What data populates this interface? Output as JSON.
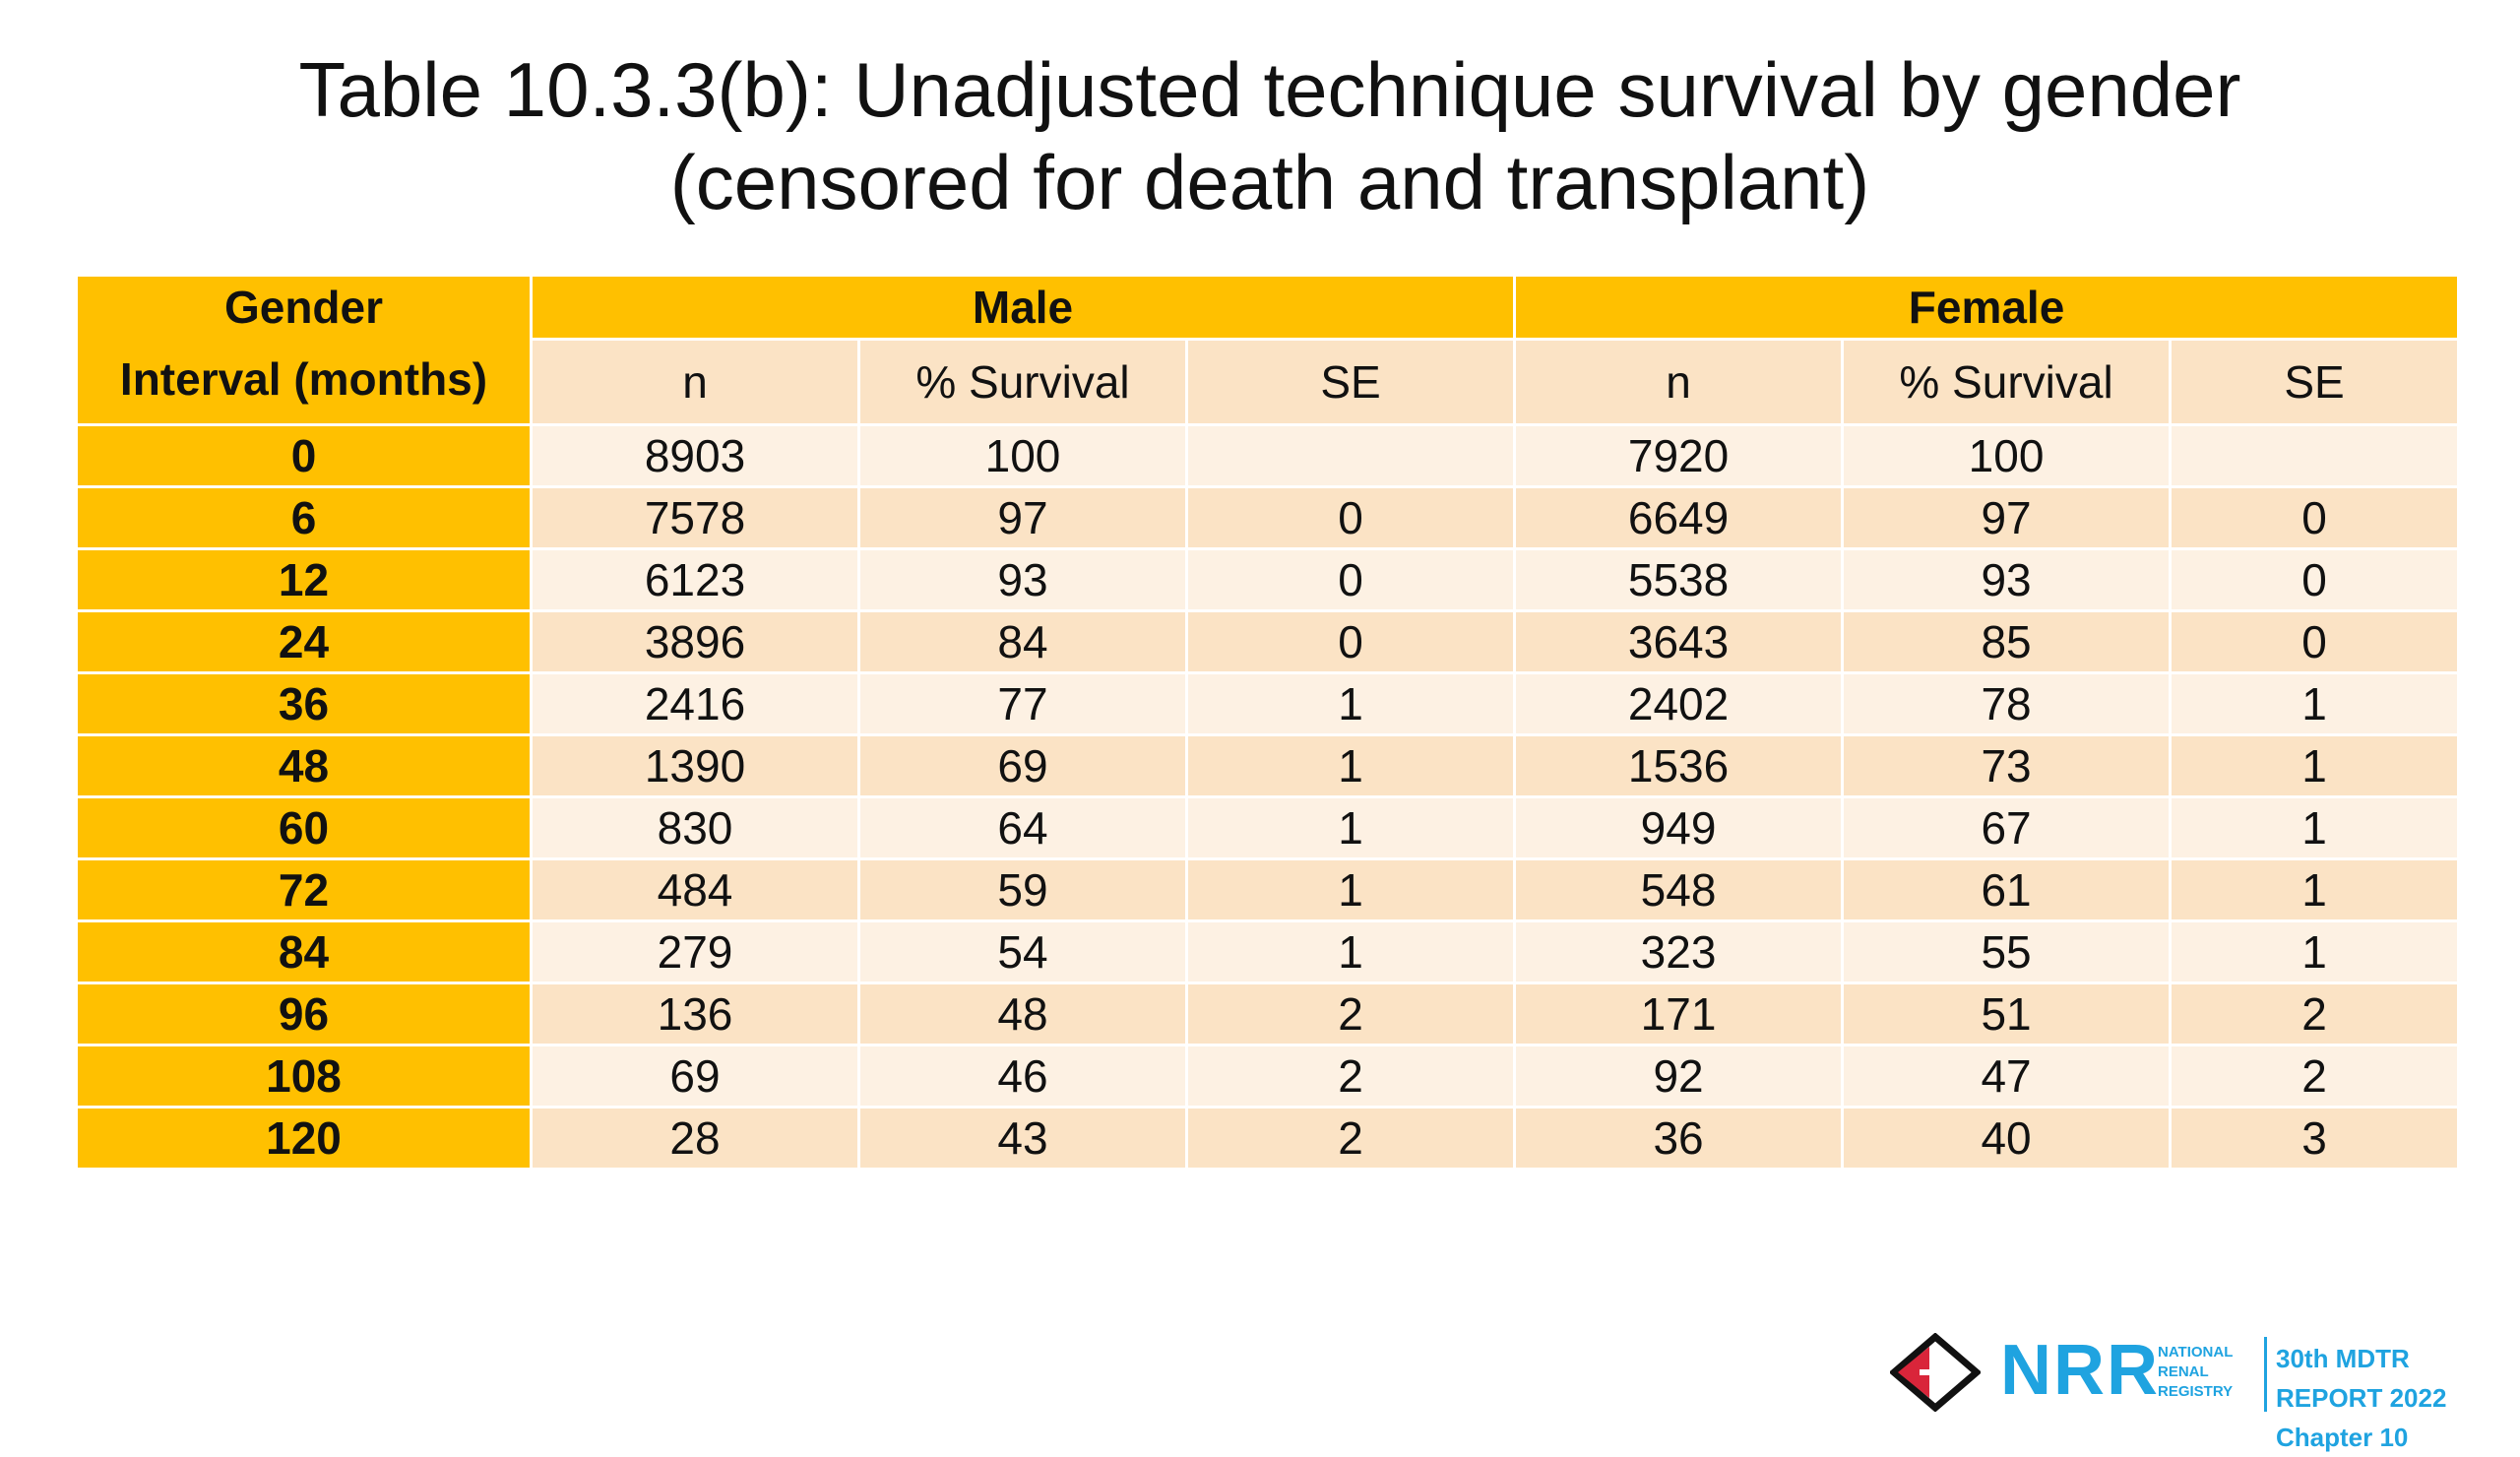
{
  "title": {
    "line1": "Table 10.3.3(b): Unadjusted technique survival by gender",
    "line2": "(censored for death and transplant)"
  },
  "table": {
    "corner_top": "Gender",
    "corner_bottom": "Interval (months)",
    "groups": [
      "Male",
      "Female"
    ],
    "sub_headers": [
      "n",
      "% Survival",
      "SE",
      "n",
      "% Survival",
      "SE"
    ],
    "rows": [
      {
        "interval": "0",
        "values": [
          "8903",
          "100",
          "",
          "7920",
          "100",
          ""
        ]
      },
      {
        "interval": "6",
        "values": [
          "7578",
          "97",
          "0",
          "6649",
          "97",
          "0"
        ]
      },
      {
        "interval": "12",
        "values": [
          "6123",
          "93",
          "0",
          "5538",
          "93",
          "0"
        ]
      },
      {
        "interval": "24",
        "values": [
          "3896",
          "84",
          "0",
          "3643",
          "85",
          "0"
        ]
      },
      {
        "interval": "36",
        "values": [
          "2416",
          "77",
          "1",
          "2402",
          "78",
          "1"
        ]
      },
      {
        "interval": "48",
        "values": [
          "1390",
          "69",
          "1",
          "1536",
          "73",
          "1"
        ]
      },
      {
        "interval": "60",
        "values": [
          "830",
          "64",
          "1",
          "949",
          "67",
          "1"
        ]
      },
      {
        "interval": "72",
        "values": [
          "484",
          "59",
          "1",
          "548",
          "61",
          "1"
        ]
      },
      {
        "interval": "84",
        "values": [
          "279",
          "54",
          "1",
          "323",
          "55",
          "1"
        ]
      },
      {
        "interval": "96",
        "values": [
          "136",
          "48",
          "2",
          "171",
          "51",
          "2"
        ]
      },
      {
        "interval": "108",
        "values": [
          "69",
          "46",
          "2",
          "92",
          "47",
          "2"
        ]
      },
      {
        "interval": "120",
        "values": [
          "28",
          "43",
          "2",
          "36",
          "40",
          "3"
        ]
      }
    ]
  },
  "footer": {
    "logo_letters": "NRR",
    "org_line1": "NATIONAL",
    "org_line2": "RENAL",
    "org_line3": "REGISTRY",
    "report_line1": "30th MDTR REPORT 2022",
    "report_line2": "Chapter 10"
  },
  "colors": {
    "header_gold": "#ffc000",
    "row_light": "#fdf1e3",
    "row_peach": "#fbe3c5",
    "logo_blue": "#1fa3e0",
    "logo_red": "#d9253a"
  }
}
